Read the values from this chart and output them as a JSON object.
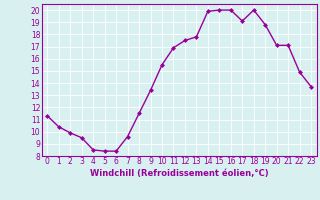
{
  "x": [
    0,
    1,
    2,
    3,
    4,
    5,
    6,
    7,
    8,
    9,
    10,
    11,
    12,
    13,
    14,
    15,
    16,
    17,
    18,
    19,
    20,
    21,
    22,
    23
  ],
  "y": [
    11.3,
    10.4,
    9.9,
    9.5,
    8.5,
    8.4,
    8.4,
    9.6,
    11.5,
    13.4,
    15.5,
    16.9,
    17.5,
    17.8,
    19.9,
    20.0,
    20.0,
    19.1,
    20.0,
    18.8,
    17.1,
    17.1,
    14.9,
    13.7
  ],
  "line_color": "#990099",
  "marker": "D",
  "marker_size": 2.0,
  "bg_color": "#d8f0f0",
  "grid_color": "#b8d8d8",
  "xlabel": "Windchill (Refroidissement éolien,°C)",
  "xlabel_color": "#990099",
  "tick_color": "#990099",
  "ylim": [
    8,
    20.5
  ],
  "xlim": [
    -0.5,
    23.5
  ],
  "yticks": [
    8,
    9,
    10,
    11,
    12,
    13,
    14,
    15,
    16,
    17,
    18,
    19,
    20
  ],
  "xticks": [
    0,
    1,
    2,
    3,
    4,
    5,
    6,
    7,
    8,
    9,
    10,
    11,
    12,
    13,
    14,
    15,
    16,
    17,
    18,
    19,
    20,
    21,
    22,
    23
  ],
  "xtick_labels": [
    "0",
    "1",
    "2",
    "3",
    "4",
    "5",
    "6",
    "7",
    "8",
    "9",
    "10",
    "11",
    "12",
    "13",
    "14",
    "15",
    "16",
    "17",
    "18",
    "19",
    "20",
    "21",
    "22",
    "23"
  ],
  "ytick_labels": [
    "8",
    "9",
    "10",
    "11",
    "12",
    "13",
    "14",
    "15",
    "16",
    "17",
    "18",
    "19",
    "20"
  ],
  "spine_color": "#990099",
  "linewidth": 1.0,
  "tick_fontsize": 5.5,
  "xlabel_fontsize": 6.0
}
